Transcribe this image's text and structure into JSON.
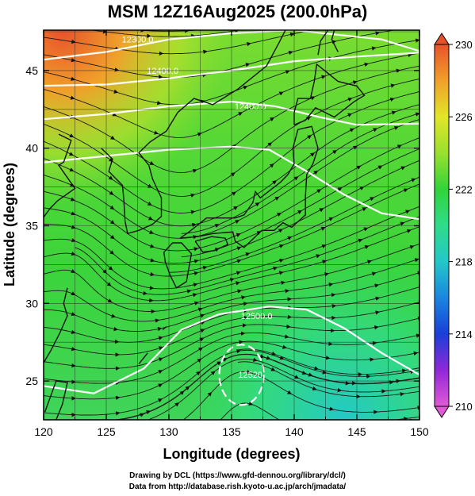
{
  "title": "MSM 12Z16Aug2025 (200.0hPa)",
  "footer": {
    "line1": "Drawing by DCL (https://www.gfd-dennou.org/library/dcl/)",
    "line2": "Data from http://database.rish.kyoto-u.ac.jp/arch/jmadata/"
  },
  "chart_data": {
    "type": "map",
    "xlabel": "Longitude (degrees)",
    "ylabel": "Latitude (degrees)",
    "xlim": [
      120,
      150
    ],
    "ylim": [
      22.5,
      47.6
    ],
    "xticks": [
      120,
      125,
      130,
      135,
      140,
      145,
      150
    ],
    "yticks": [
      25,
      30,
      35,
      40,
      45
    ],
    "grid": true,
    "colorbar": {
      "min": 210,
      "max": 230,
      "ticks": [
        210,
        214,
        218,
        222,
        226,
        230
      ],
      "colors": [
        "#e05ad6",
        "#9028d8",
        "#1a3fd8",
        "#1a86e0",
        "#23c8c8",
        "#2fdc8a",
        "#31d43a",
        "#9ae02e",
        "#e2e628",
        "#f0a02a",
        "#e8522a"
      ]
    },
    "contours": [
      {
        "label": "12300.0",
        "lat": 46.7
      },
      {
        "label": "12400.0",
        "lat": 44.8
      },
      {
        "label": "12400.0",
        "lat": 42.5
      },
      {
        "label": "12500.0",
        "lat": 29.0
      },
      {
        "label": "12520",
        "lat": 25.5
      }
    ]
  }
}
